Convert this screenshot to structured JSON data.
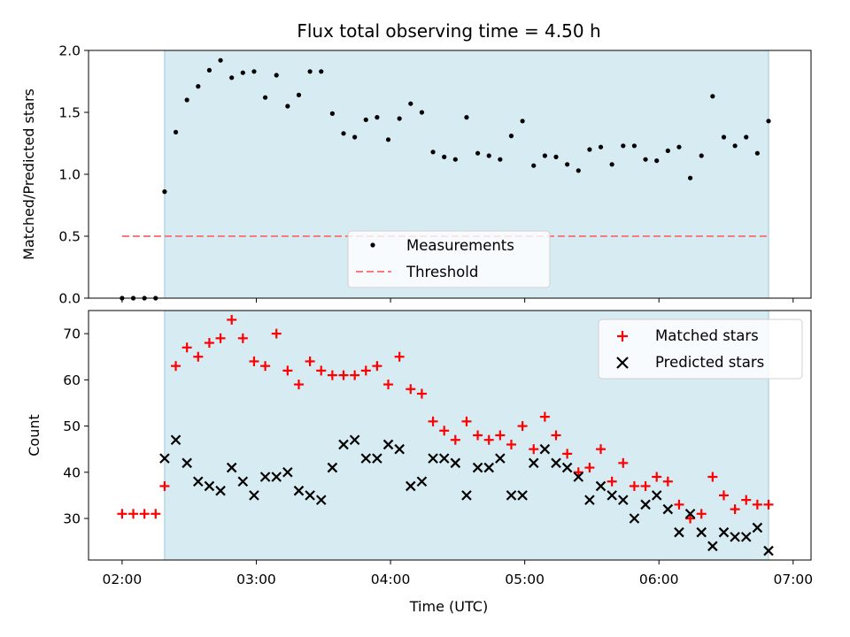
{
  "chart_data": [
    {
      "type": "scatter",
      "title": "Flux total observing time = 4.50 h",
      "ylabel": "Matched/Predicted stars",
      "xlim": [
        "01:45",
        "07:08"
      ],
      "ylim": [
        0,
        2.0
      ],
      "yticks": [
        "0.0",
        "0.5",
        "1.0",
        "1.5",
        "2.0"
      ],
      "legend_position": "lower-center",
      "shaded_interval": [
        "02:19",
        "06:49"
      ],
      "shade_color": "#add8e6",
      "threshold": {
        "name": "Threshold",
        "value": 0.5,
        "x_range": [
          "02:00",
          "06:49"
        ],
        "color": "#f47c7c"
      },
      "series": [
        {
          "name": "Measurements",
          "color": "#000000",
          "x": [
            "02:00",
            "02:05",
            "02:10",
            "02:15",
            "02:19",
            "02:24",
            "02:29",
            "02:34",
            "02:39",
            "02:44",
            "02:49",
            "02:54",
            "02:59",
            "03:04",
            "03:09",
            "03:14",
            "03:19",
            "03:24",
            "03:29",
            "03:34",
            "03:39",
            "03:44",
            "03:49",
            "03:54",
            "03:59",
            "04:04",
            "04:09",
            "04:14",
            "04:19",
            "04:24",
            "04:29",
            "04:34",
            "04:39",
            "04:44",
            "04:49",
            "04:54",
            "04:59",
            "05:04",
            "05:09",
            "05:14",
            "05:19",
            "05:24",
            "05:29",
            "05:34",
            "05:39",
            "05:44",
            "05:49",
            "05:54",
            "05:59",
            "06:04",
            "06:09",
            "06:14",
            "06:19",
            "06:24",
            "06:29",
            "06:34",
            "06:39",
            "06:44",
            "06:49"
          ],
          "y": [
            0.0,
            0.0,
            0.0,
            0.0,
            0.86,
            1.34,
            1.6,
            1.71,
            1.84,
            1.92,
            1.78,
            1.82,
            1.83,
            1.62,
            1.8,
            1.55,
            1.64,
            1.83,
            1.83,
            1.49,
            1.33,
            1.3,
            1.44,
            1.46,
            1.28,
            1.45,
            1.57,
            1.5,
            1.18,
            1.14,
            1.12,
            1.46,
            1.17,
            1.15,
            1.12,
            1.31,
            1.43,
            1.07,
            1.15,
            1.14,
            1.08,
            1.03,
            1.2,
            1.22,
            1.08,
            1.23,
            1.23,
            1.12,
            1.11,
            1.19,
            1.22,
            0.97,
            1.15,
            1.63,
            1.3,
            1.23,
            1.3,
            1.17,
            1.43
          ]
        }
      ]
    },
    {
      "type": "scatter",
      "xlabel": "Time (UTC)",
      "ylabel": "Count",
      "xlim": [
        "01:45",
        "07:08"
      ],
      "ylim": [
        21,
        75
      ],
      "xticks": [
        "02:00",
        "03:00",
        "04:00",
        "05:00",
        "06:00",
        "07:00"
      ],
      "yticks": [
        "30",
        "40",
        "50",
        "60",
        "70"
      ],
      "legend_position": "upper-right",
      "shaded_interval": [
        "02:19",
        "06:49"
      ],
      "series": [
        {
          "name": "Matched stars",
          "marker": "+",
          "color": "#ff0000",
          "x": [
            "02:00",
            "02:05",
            "02:10",
            "02:15",
            "02:19",
            "02:24",
            "02:29",
            "02:34",
            "02:39",
            "02:44",
            "02:49",
            "02:54",
            "02:59",
            "03:04",
            "03:09",
            "03:14",
            "03:19",
            "03:24",
            "03:29",
            "03:34",
            "03:39",
            "03:44",
            "03:49",
            "03:54",
            "03:59",
            "04:04",
            "04:09",
            "04:14",
            "04:19",
            "04:24",
            "04:29",
            "04:34",
            "04:39",
            "04:44",
            "04:49",
            "04:54",
            "04:59",
            "05:04",
            "05:09",
            "05:14",
            "05:19",
            "05:24",
            "05:29",
            "05:34",
            "05:39",
            "05:44",
            "05:49",
            "05:54",
            "05:59",
            "06:04",
            "06:09",
            "06:14",
            "06:19",
            "06:24",
            "06:29",
            "06:34",
            "06:39",
            "06:44",
            "06:49"
          ],
          "y": [
            31,
            31,
            31,
            31,
            37,
            63,
            67,
            65,
            68,
            69,
            73,
            69,
            64,
            63,
            70,
            62,
            59,
            64,
            62,
            61,
            61,
            61,
            62,
            63,
            59,
            65,
            58,
            57,
            51,
            49,
            47,
            51,
            48,
            47,
            48,
            46,
            50,
            45,
            52,
            48,
            44,
            40,
            41,
            45,
            38,
            42,
            37,
            37,
            39,
            38,
            33,
            30,
            31,
            39,
            35,
            32,
            34,
            33,
            33
          ]
        },
        {
          "name": "Predicted stars",
          "marker": "x",
          "color": "#000000",
          "x": [
            "02:19",
            "02:24",
            "02:29",
            "02:34",
            "02:39",
            "02:44",
            "02:49",
            "02:54",
            "02:59",
            "03:04",
            "03:09",
            "03:14",
            "03:19",
            "03:24",
            "03:29",
            "03:34",
            "03:39",
            "03:44",
            "03:49",
            "03:54",
            "03:59",
            "04:04",
            "04:09",
            "04:14",
            "04:19",
            "04:24",
            "04:29",
            "04:34",
            "04:39",
            "04:44",
            "04:49",
            "04:54",
            "04:59",
            "05:04",
            "05:09",
            "05:14",
            "05:19",
            "05:24",
            "05:29",
            "05:34",
            "05:39",
            "05:44",
            "05:49",
            "05:54",
            "05:59",
            "06:04",
            "06:09",
            "06:14",
            "06:19",
            "06:24",
            "06:29",
            "06:34",
            "06:39",
            "06:44",
            "06:49"
          ],
          "y": [
            43,
            47,
            42,
            38,
            37,
            36,
            41,
            38,
            35,
            39,
            39,
            40,
            36,
            35,
            34,
            41,
            46,
            47,
            43,
            43,
            46,
            45,
            37,
            38,
            43,
            43,
            42,
            35,
            41,
            41,
            43,
            35,
            35,
            42,
            45,
            42,
            41,
            39,
            34,
            37,
            35,
            34,
            30,
            33,
            35,
            32,
            27,
            31,
            27,
            24,
            27,
            26,
            26,
            28,
            23
          ]
        }
      ]
    }
  ]
}
